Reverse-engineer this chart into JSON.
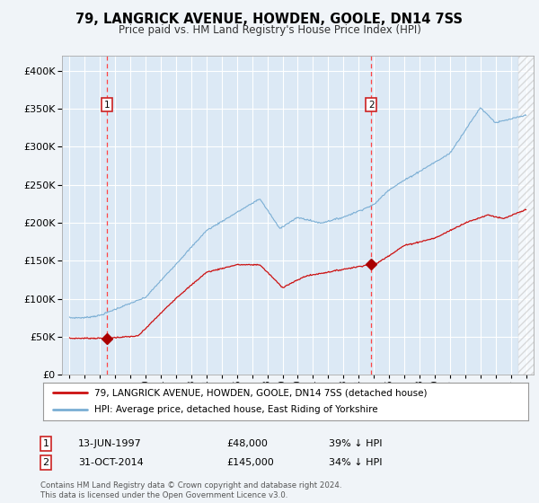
{
  "title": "79, LANGRICK AVENUE, HOWDEN, GOOLE, DN14 7SS",
  "subtitle": "Price paid vs. HM Land Registry's House Price Index (HPI)",
  "fig_bg_color": "#f0f4f8",
  "plot_bg_color": "#dce9f5",
  "grid_color": "#c8d8e8",
  "hpi_color": "#7aaed4",
  "price_color": "#cc1111",
  "marker_color": "#aa0000",
  "vline_color": "#ff4444",
  "transaction1_date_x": 1997.45,
  "transaction1_price": 48000,
  "transaction1_label": "13-JUN-1997",
  "transaction1_amount": "£48,000",
  "transaction1_pct": "39% ↓ HPI",
  "transaction2_date_x": 2014.83,
  "transaction2_price": 145000,
  "transaction2_label": "31-OCT-2014",
  "transaction2_amount": "£145,000",
  "transaction2_pct": "34% ↓ HPI",
  "legend_line1": "79, LANGRICK AVENUE, HOWDEN, GOOLE, DN14 7SS (detached house)",
  "legend_line2": "HPI: Average price, detached house, East Riding of Yorkshire",
  "footnote": "Contains HM Land Registry data © Crown copyright and database right 2024.\nThis data is licensed under the Open Government Licence v3.0.",
  "ylim": [
    0,
    420000
  ],
  "xlim": [
    1994.5,
    2025.5
  ]
}
